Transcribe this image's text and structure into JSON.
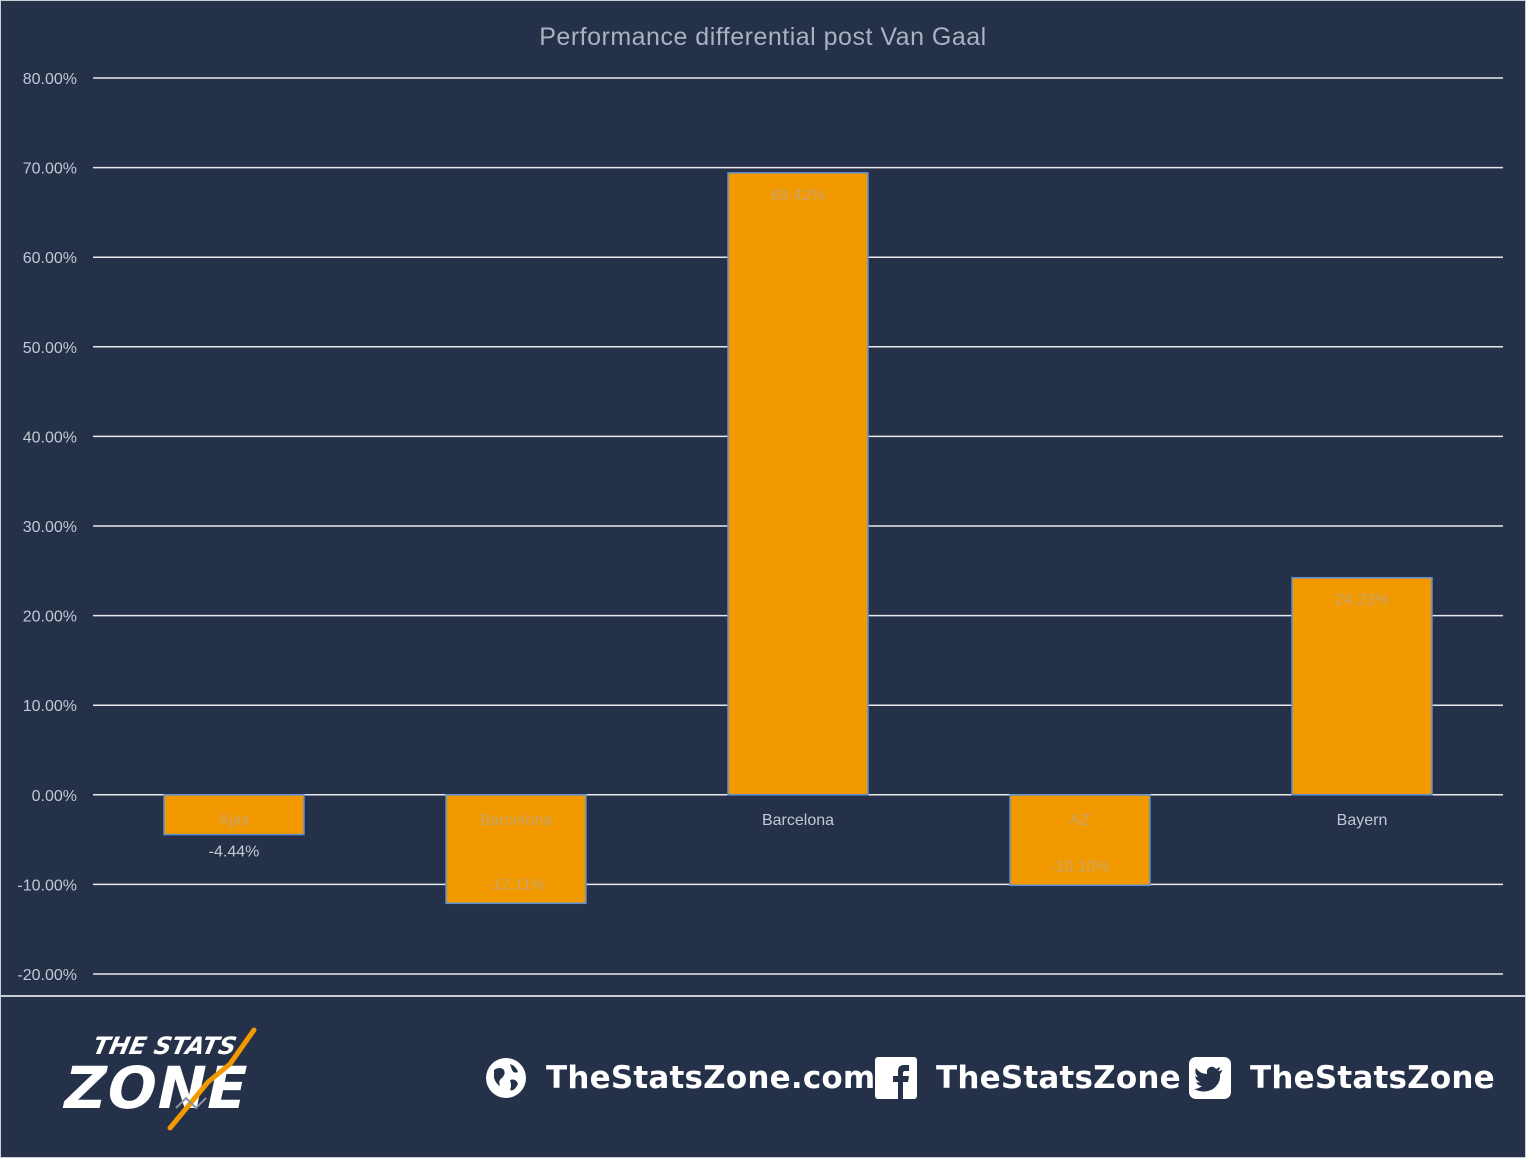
{
  "chart_data": {
    "type": "bar",
    "title": "Performance differential post Van Gaal",
    "categories": [
      "Ajax",
      "Barcelona",
      "Barcelona",
      "AZ",
      "Bayern"
    ],
    "values": [
      -4.44,
      -12.11,
      69.42,
      -10.1,
      24.23
    ],
    "data_labels": [
      "-4.44%",
      "-12.11%",
      "69.42%",
      "-10.10%",
      "24.23%"
    ],
    "ylim": [
      -20,
      80
    ],
    "yticks": [
      -20,
      -10,
      0,
      10,
      20,
      30,
      40,
      50,
      60,
      70,
      80
    ],
    "ytick_labels": [
      "-20.00%",
      "-10.00%",
      "0.00%",
      "10.00%",
      "20.00%",
      "30.00%",
      "40.00%",
      "50.00%",
      "60.00%",
      "70.00%",
      "80.00%"
    ],
    "grid": true,
    "xlabel": "",
    "ylabel": "",
    "colors": {
      "background": "#253049",
      "bar": "#f29900",
      "bar_edge": "#5b8fd6",
      "gridline": "#e6e8ec",
      "tick_text": "#c3c8d2",
      "label_on_bar": "#c9a46a",
      "label_off_bar": "#c3c8d2"
    }
  },
  "footer": {
    "logo": {
      "line1": "THE STATS",
      "line2": "ZONE"
    },
    "website": {
      "icon": "globe-icon",
      "text": "TheStatsZone.com"
    },
    "facebook": {
      "icon": "facebook-icon",
      "text": "TheStatsZone"
    },
    "twitter": {
      "icon": "twitter-icon",
      "text": "TheStatsZone"
    }
  }
}
